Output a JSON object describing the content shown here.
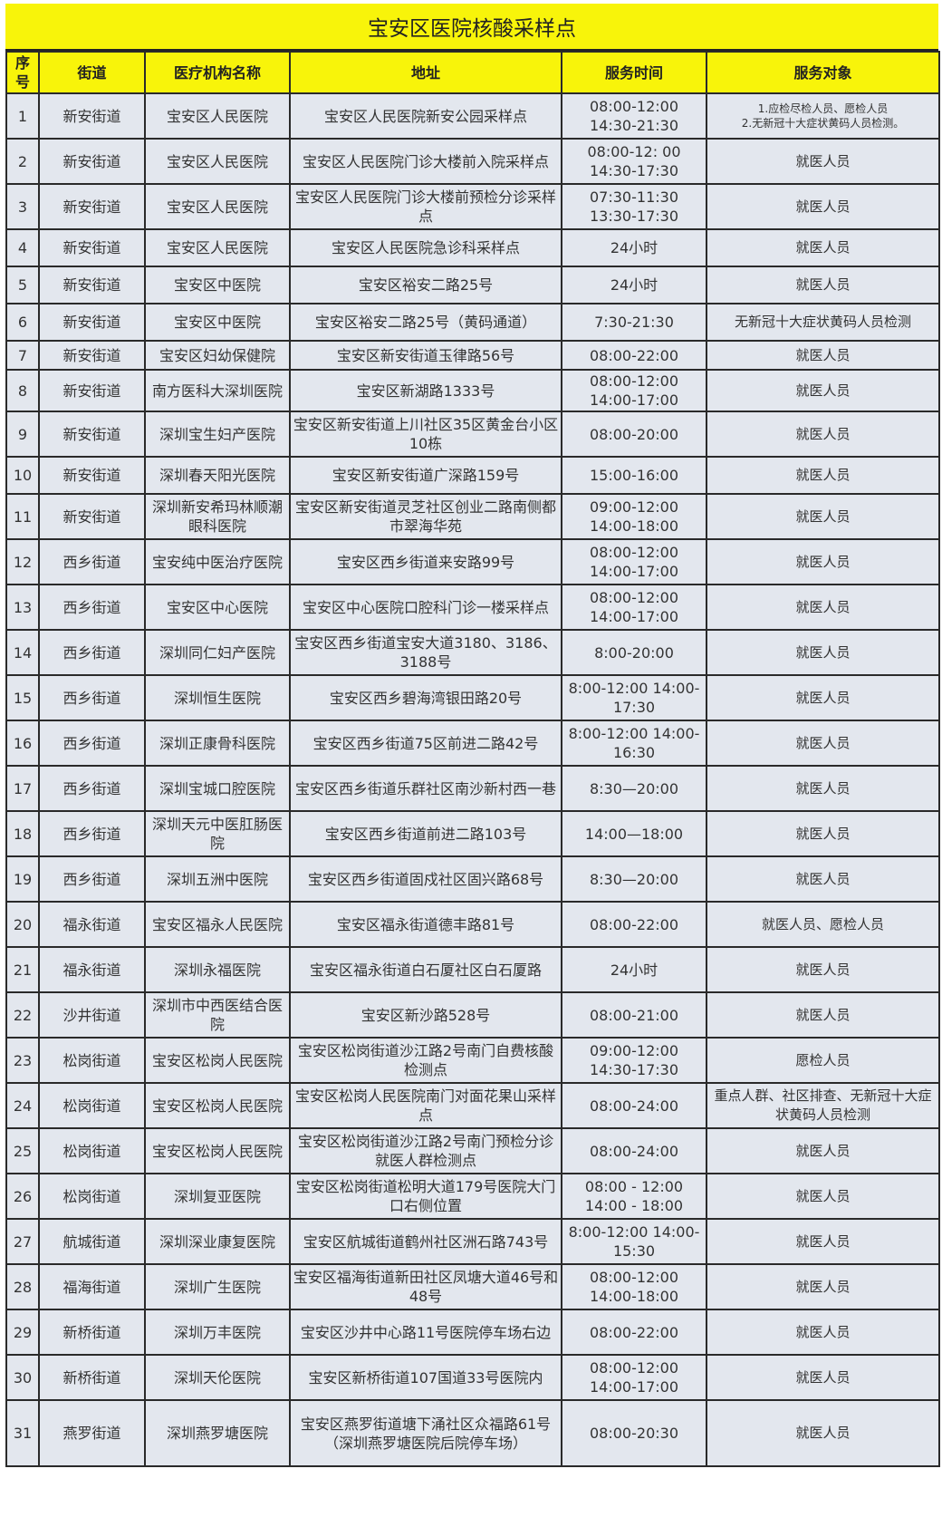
{
  "title": "宝安区医院核酸采样点",
  "colors": {
    "header_bg": "#f8f40a",
    "cell_bg": "#e3e7ee",
    "border": "#2a2a2a"
  },
  "columns": [
    "序号",
    "街道",
    "医疗机构名称",
    "地址",
    "服务时间",
    "服务对象"
  ],
  "rows": [
    [
      "1",
      "新安街道",
      "宝安区人民医院",
      "宝安区人民医院新安公园采样点",
      "08:00-12:00 14:30-21:30",
      "1.应检尽检人员、愿检人员\n2.无新冠十大症状黄码人员检测。"
    ],
    [
      "2",
      "新安街道",
      "宝安区人民医院",
      "宝安区人民医院门诊大楼前入院采样点",
      "08:00-12: 00 14:30-17:30",
      "就医人员"
    ],
    [
      "3",
      "新安街道",
      "宝安区人民医院",
      "宝安区人民医院门诊大楼前预检分诊采样点",
      "07:30-11:30 13:30-17:30",
      "就医人员"
    ],
    [
      "4",
      "新安街道",
      "宝安区人民医院",
      "宝安区人民医院急诊科采样点",
      "24小时",
      "就医人员"
    ],
    [
      "5",
      "新安街道",
      "宝安区中医院",
      "宝安区裕安二路25号",
      "24小时",
      "就医人员"
    ],
    [
      "6",
      "新安街道",
      "宝安区中医院",
      "宝安区裕安二路25号（黄码通道）",
      "7:30-21:30",
      "无新冠十大症状黄码人员检测"
    ],
    [
      "7",
      "新安街道",
      "宝安区妇幼保健院",
      "宝安区新安街道玉律路56号",
      "08:00-22:00",
      "就医人员"
    ],
    [
      "8",
      "新安街道",
      "南方医科大深圳医院",
      "宝安区新湖路1333号",
      "08:00-12:00 14:00-17:00",
      "就医人员"
    ],
    [
      "9",
      "新安街道",
      "深圳宝生妇产医院",
      "宝安区新安街道上川社区35区黄金台小区10栋",
      "08:00-20:00",
      "就医人员"
    ],
    [
      "10",
      "新安街道",
      "深圳春天阳光医院",
      "宝安区新安街道广深路159号",
      "15:00-16:00",
      "就医人员"
    ],
    [
      "11",
      "新安街道",
      "深圳新安希玛林顺潮眼科医院",
      "宝安区新安街道灵芝社区创业二路南侧都市翠海华苑",
      "09:00-12:00 14:00-18:00",
      "就医人员"
    ],
    [
      "12",
      "西乡街道",
      "宝安纯中医治疗医院",
      "宝安区西乡街道来安路99号",
      "08:00-12:00 14:00-17:00",
      "就医人员"
    ],
    [
      "13",
      "西乡街道",
      "宝安区中心医院",
      "宝安区中心医院口腔科门诊一楼采样点",
      "08:00-12:00 14:00-17:00",
      "就医人员"
    ],
    [
      "14",
      "西乡街道",
      "深圳同仁妇产医院",
      "宝安区西乡街道宝安大道3180、3186、3188号",
      "8:00-20:00",
      "就医人员"
    ],
    [
      "15",
      "西乡街道",
      "深圳恒生医院",
      "宝安区西乡碧海湾银田路20号",
      "8:00-12:00 14:00-17:30",
      "就医人员"
    ],
    [
      "16",
      "西乡街道",
      "深圳正康骨科医院",
      "宝安区西乡街道75区前进二路42号",
      "8:00-12:00 14:00-16:30",
      "就医人员"
    ],
    [
      "17",
      "西乡街道",
      "深圳宝城口腔医院",
      "宝安区西乡街道乐群社区南沙新村西一巷",
      "8:30—20:00",
      "就医人员"
    ],
    [
      "18",
      "西乡街道",
      "深圳天元中医肛肠医院",
      "宝安区西乡街道前进二路103号",
      "14:00—18:00",
      "就医人员"
    ],
    [
      "19",
      "西乡街道",
      "深圳五洲中医院",
      "宝安区西乡街道固戍社区固兴路68号",
      "8:30—20:00",
      "就医人员"
    ],
    [
      "20",
      "福永街道",
      "宝安区福永人民医院",
      "宝安区福永街道德丰路81号",
      "08:00-22:00",
      "就医人员、愿检人员"
    ],
    [
      "21",
      "福永街道",
      "深圳永福医院",
      "宝安区福永街道白石厦社区白石厦路",
      "24小时",
      "就医人员"
    ],
    [
      "22",
      "沙井街道",
      "深圳市中西医结合医院",
      "宝安区新沙路528号",
      "08:00-21:00",
      "就医人员"
    ],
    [
      "23",
      "松岗街道",
      "宝安区松岗人民医院",
      "宝安区松岗街道沙江路2号南门自费核酸检测点",
      "09:00-12:00 14:30-17:30",
      "愿检人员"
    ],
    [
      "24",
      "松岗街道",
      "宝安区松岗人民医院",
      "宝安区松岗人民医院南门对面花果山采样点",
      "08:00-24:00",
      "重点人群、社区排查、无新冠十大症状黄码人员检测"
    ],
    [
      "25",
      "松岗街道",
      "宝安区松岗人民医院",
      "宝安区松岗街道沙江路2号南门预检分诊就医人群检测点",
      "08:00-24:00",
      "就医人员"
    ],
    [
      "26",
      "松岗街道",
      "深圳复亚医院",
      "宝安区松岗街道松明大道179号医院大门口右侧位置",
      "08:00 - 12:00 14:00 - 18:00",
      "就医人员"
    ],
    [
      "27",
      "航城街道",
      "深圳深业康复医院",
      "宝安区航城街道鹤州社区洲石路743号",
      "8:00-12:00 14:00-15:30",
      "就医人员"
    ],
    [
      "28",
      "福海街道",
      "深圳广生医院",
      "宝安区福海街道新田社区凤塘大道46号和48号",
      "08:00-12:00 14:00-18:00",
      "就医人员"
    ],
    [
      "29",
      "新桥街道",
      "深圳万丰医院",
      "宝安区沙井中心路11号医院停车场右边",
      "08:00-22:00",
      "就医人员"
    ],
    [
      "30",
      "新桥街道",
      "深圳天伦医院",
      "宝安区新桥街道107国道33号医院内",
      "08:00-12:00 14:00-17:00",
      "就医人员"
    ],
    [
      "31",
      "燕罗街道",
      "深圳燕罗塘医院",
      "宝安区燕罗街道塘下涌社区众福路61号（深圳燕罗塘医院后院停车场）",
      "08:00-20:30",
      "就医人员"
    ]
  ]
}
